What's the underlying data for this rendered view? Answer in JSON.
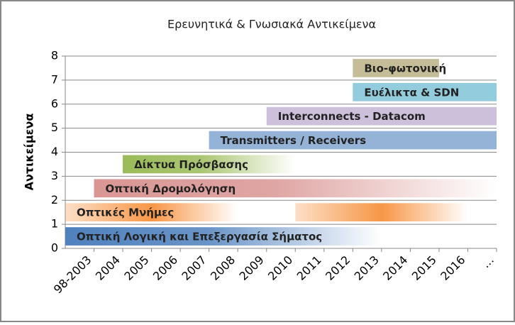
{
  "chart_data": {
    "type": "gantt",
    "title": "Ερευνητικά & Γνωσιακά Αντικείμενα",
    "ylabel": "Αντικείμενα",
    "categories": [
      "98-2003",
      "2004",
      "2005",
      "2006",
      "2007",
      "2008",
      "2009",
      "2010",
      "2011",
      "2012",
      "2013",
      "2014",
      "2015",
      "2016",
      "…"
    ],
    "ylim": [
      0,
      8
    ],
    "yticks": [
      0,
      1,
      2,
      3,
      4,
      5,
      6,
      7,
      8
    ],
    "grid": true,
    "bars": [
      {
        "label": "Οπτική Λογική και Επεξεργασία Σήματος",
        "color": "#4f81bd",
        "y0": 0,
        "y1": 1,
        "spans": [
          [
            "98-2003",
            "2013"
          ]
        ],
        "fade": "right"
      },
      {
        "label": "Οπτικές Μνήμες",
        "color": "#f79646",
        "y0": 1,
        "y1": 2,
        "spans": [
          [
            "98-2003",
            "2008"
          ],
          [
            "2011",
            "2016"
          ]
        ],
        "fade": "both"
      },
      {
        "label": "Οπτική Δρομολόγηση",
        "color": "#d99694",
        "y0": 2,
        "y1": 3,
        "spans": [
          [
            "2004",
            "…"
          ]
        ],
        "fade": "right"
      },
      {
        "label": "Δίκτυα Πρόσβασης",
        "color": "#9bbb59",
        "y0": 3,
        "y1": 4,
        "spans": [
          [
            "2005",
            "2010"
          ]
        ],
        "fade": "right"
      },
      {
        "label": "Transmitters / Receivers",
        "color": "#95b3d7",
        "y0": 4,
        "y1": 5,
        "spans": [
          [
            "2008",
            "…"
          ]
        ]
      },
      {
        "label": "Interconnects - Datacom",
        "color": "#ccc0da",
        "y0": 5,
        "y1": 6,
        "spans": [
          [
            "2010",
            "…"
          ]
        ]
      },
      {
        "label": "Ευέλικτα & SDN",
        "color": "#93cddd",
        "y0": 6,
        "y1": 7,
        "spans": [
          [
            "2013",
            "…"
          ]
        ]
      },
      {
        "label": "Βιο-φωτονική",
        "color": "#c4bd97",
        "y0": 7,
        "y1": 8,
        "spans": [
          [
            "2013",
            "2015"
          ]
        ]
      }
    ]
  }
}
